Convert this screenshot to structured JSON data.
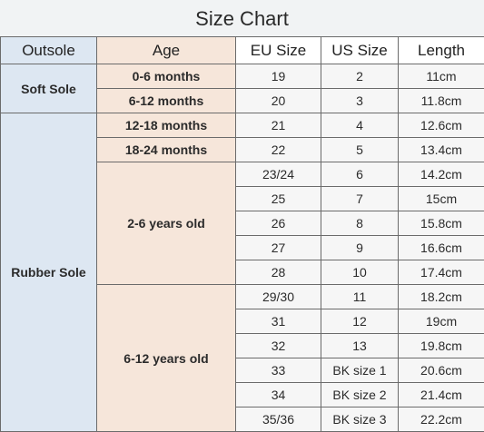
{
  "title": "Size Chart",
  "headers": [
    "Outsole",
    "Age",
    "EU Size",
    "US Size",
    "Length"
  ],
  "outsoles": [
    "Soft Sole",
    "Rubber Sole"
  ],
  "ages": [
    "0-6 months",
    "6-12 months",
    "12-18 months",
    "18-24 months",
    "2-6 years old",
    "6-12 years old"
  ],
  "rows": [
    {
      "eu": "19",
      "us": "2",
      "len": "11cm"
    },
    {
      "eu": "20",
      "us": "3",
      "len": "11.8cm"
    },
    {
      "eu": "21",
      "us": "4",
      "len": "12.6cm"
    },
    {
      "eu": "22",
      "us": "5",
      "len": "13.4cm"
    },
    {
      "eu": "23/24",
      "us": "6",
      "len": "14.2cm"
    },
    {
      "eu": "25",
      "us": "7",
      "len": "15cm"
    },
    {
      "eu": "26",
      "us": "8",
      "len": "15.8cm"
    },
    {
      "eu": "27",
      "us": "9",
      "len": "16.6cm"
    },
    {
      "eu": "28",
      "us": "10",
      "len": "17.4cm"
    },
    {
      "eu": "29/30",
      "us": "11",
      "len": "18.2cm"
    },
    {
      "eu": "31",
      "us": "12",
      "len": "19cm"
    },
    {
      "eu": "32",
      "us": "13",
      "len": "19.8cm"
    },
    {
      "eu": "33",
      "us": "BK size 1",
      "len": "20.6cm"
    },
    {
      "eu": "34",
      "us": "BK size 2",
      "len": "21.4cm"
    },
    {
      "eu": "35/36",
      "us": "BK size 3",
      "len": "22.2cm"
    }
  ],
  "colors": {
    "outsole_bg": "#dde7f2",
    "age_bg": "#f6e6da",
    "value_bg": "#f6f6f6",
    "border": "#6b6b6b"
  }
}
